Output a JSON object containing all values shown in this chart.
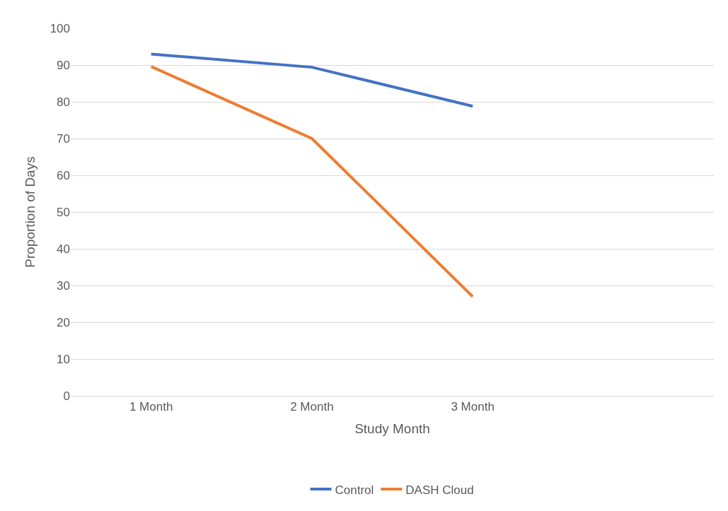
{
  "chart_data": {
    "type": "line",
    "xlabel": "Study Month",
    "ylabel": "Proportion of Days",
    "categories": [
      "1 Month",
      "2 Month",
      "3 Month",
      null
    ],
    "series": [
      {
        "name": "Control",
        "color": "#4472c4",
        "values": [
          93,
          89.4,
          78.8,
          null
        ]
      },
      {
        "name": "DASH Cloud",
        "color": "#ed7d31",
        "values": [
          89.6,
          70,
          27,
          null
        ]
      }
    ],
    "ylim": [
      0,
      100
    ],
    "yticks": [
      0,
      10,
      20,
      30,
      40,
      50,
      60,
      70,
      80,
      90,
      100
    ],
    "grid": "y",
    "legend": "bottom",
    "marker": "none",
    "line_style": "solid"
  }
}
